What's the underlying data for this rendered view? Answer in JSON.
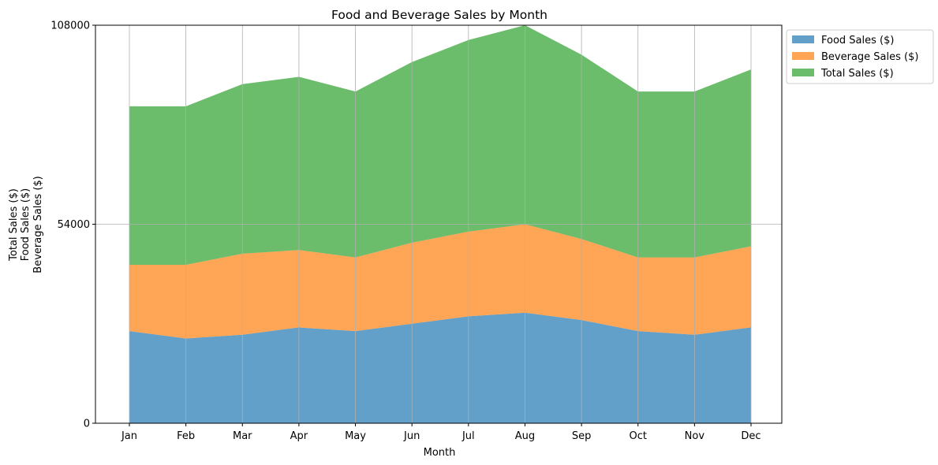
{
  "chart_data": {
    "type": "area",
    "stacked": true,
    "title": "Food and Beverage Sales by Month",
    "xlabel": "Month",
    "ylabel_lines": [
      "Total Sales ($)",
      "Food Sales ($)",
      "Beverage Sales ($)"
    ],
    "categories": [
      "Jan",
      "Feb",
      "Mar",
      "Apr",
      "May",
      "Jun",
      "Jul",
      "Aug",
      "Sep",
      "Oct",
      "Nov",
      "Dec"
    ],
    "ylim": [
      0,
      108000
    ],
    "yticks": [
      "0",
      "54000",
      "108000"
    ],
    "grid": true,
    "legend_position": "outside top-right",
    "series": [
      {
        "name": "Food Sales ($)",
        "color": "#1f77b4",
        "values": [
          25000,
          23000,
          24000,
          26000,
          25000,
          27000,
          29000,
          30000,
          28000,
          25000,
          24000,
          26000
        ]
      },
      {
        "name": "Beverage Sales ($)",
        "color": "#ff7f0e",
        "values": [
          18000,
          20000,
          22000,
          21000,
          20000,
          22000,
          23000,
          24000,
          22000,
          20000,
          21000,
          22000
        ]
      },
      {
        "name": "Total Sales ($)",
        "color": "#2ca02c",
        "values": [
          43000,
          43000,
          46000,
          47000,
          45000,
          49000,
          52000,
          54000,
          50000,
          45000,
          45000,
          48000
        ]
      }
    ]
  }
}
